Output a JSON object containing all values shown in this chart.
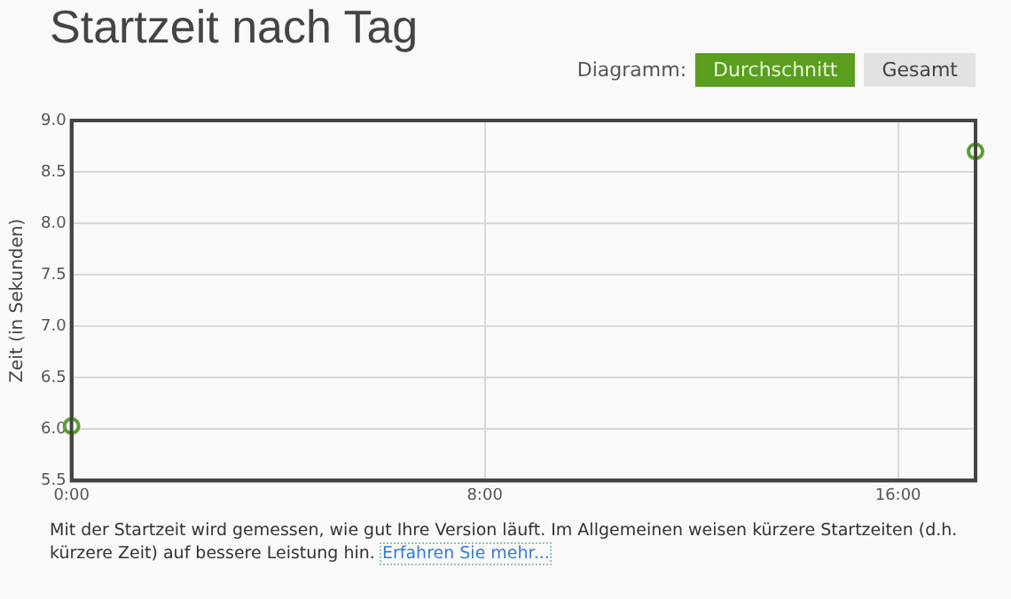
{
  "chart_data": {
    "type": "scatter",
    "title": "Startzeit nach Tag",
    "ylabel": "Zeit (in Sekunden)",
    "annotations": [
      "Diagramm:",
      "Durchschnitt",
      "Gesamt",
      "Mit der Startzeit wird gemessen, wie gut Ihre Version läuft. Im Allgemeinen weisen kürzere Startzeiten (d.h. kürzere Zeit) auf bessere Leistung hin.",
      "Erfahren Sie mehr..."
    ],
    "x": [
      0,
      17.5
    ],
    "series": [
      {
        "color": "#5b9e2d",
        "values": [
          6.03,
          8.7
        ]
      }
    ],
    "xlim": [
      0,
      17.5
    ],
    "xticks": [
      {
        "value": 0,
        "label": "0:00"
      },
      {
        "value": 8,
        "label": "8:00"
      },
      {
        "value": 16,
        "label": "16:00"
      }
    ],
    "ylim": [
      5.5,
      9
    ],
    "yticks": [
      5.5,
      {
        "value": 6,
        "label": "6.0"
      },
      6.5,
      {
        "value": 7,
        "label": "7.0"
      },
      7.5,
      {
        "value": 8,
        "label": "8.0"
      },
      8.5,
      {
        "value": 9,
        "label": "9.0"
      }
    ],
    "grid": true,
    "legend": false,
    "marker": "circle"
  }
}
